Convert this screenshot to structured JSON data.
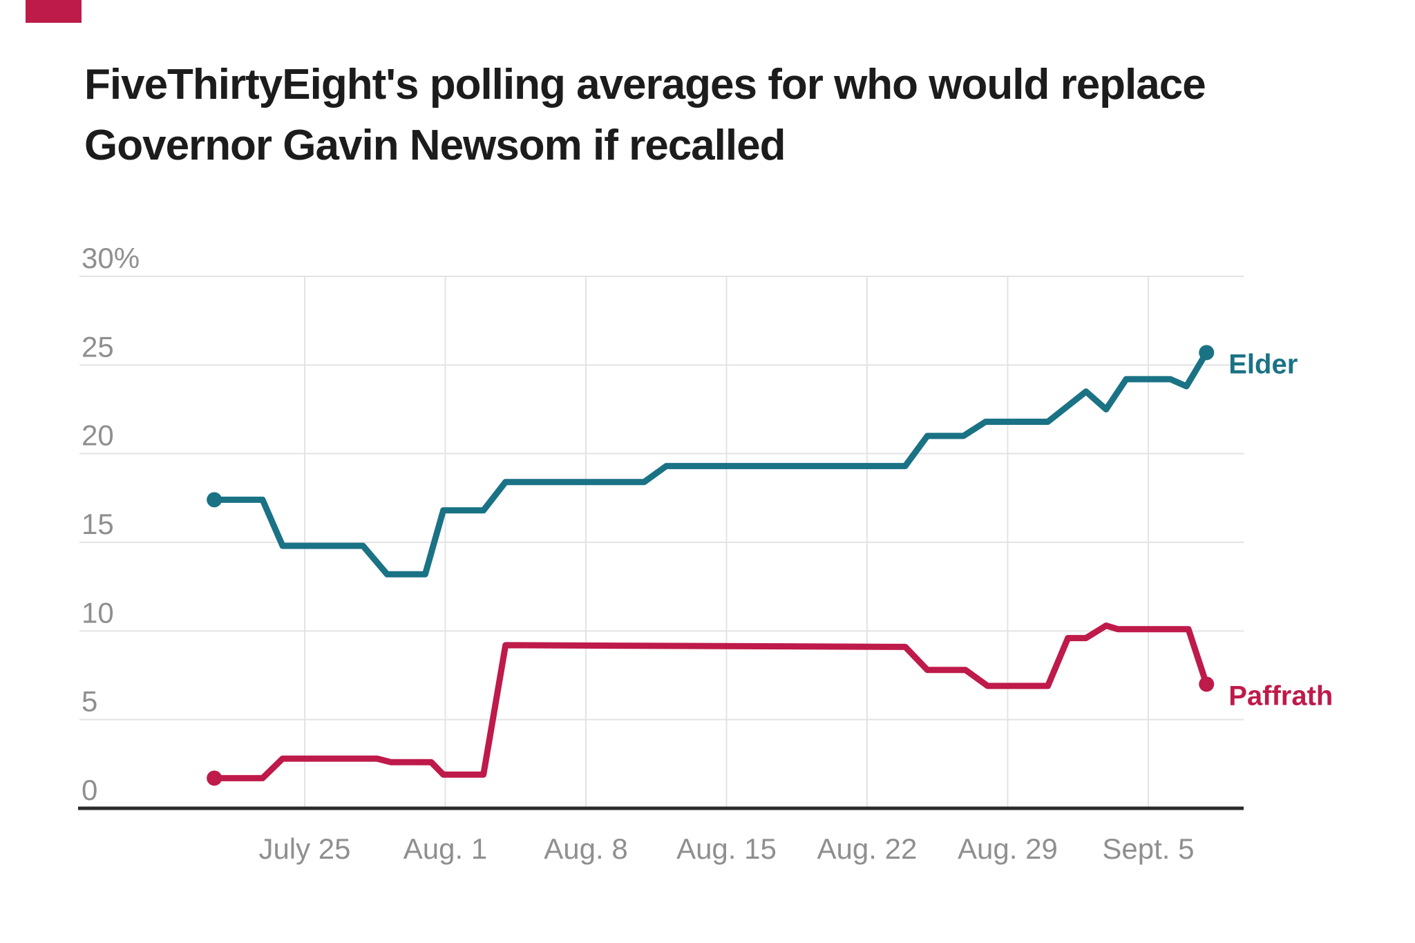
{
  "brand": {
    "mark_color": "#be1a4a"
  },
  "title": {
    "line1": "FiveThirtyEight's polling averages for who would replace",
    "line2": "Governor Gavin Newsom if recalled"
  },
  "colors": {
    "elder": "#1a7285",
    "paffrath": "#be1a4a",
    "gridline": "#e3e3e3",
    "axis": "#2b2b2b",
    "tick_text": "#8f8f8f",
    "title_text": "#1c1c1c"
  },
  "chart_data": {
    "type": "line",
    "title": "FiveThirtyEight's polling averages for who would replace Governor Gavin Newsom if recalled",
    "grid": true,
    "unit": "%",
    "ylim": [
      0,
      30
    ],
    "y_ticks": [
      {
        "label": "30%",
        "value": 30
      },
      {
        "label": "25",
        "value": 25
      },
      {
        "label": "20",
        "value": 20
      },
      {
        "label": "15",
        "value": 15
      },
      {
        "label": "10",
        "value": 10
      },
      {
        "label": "5",
        "value": 5
      },
      {
        "label": "0",
        "value": 0
      }
    ],
    "x_axis_note": "day offsets measured in days since July 25",
    "x_ticks": [
      {
        "label": "July 25",
        "day": 0
      },
      {
        "label": "Aug. 1",
        "day": 7
      },
      {
        "label": "Aug. 8",
        "day": 14
      },
      {
        "label": "Aug. 15",
        "day": 21
      },
      {
        "label": "Aug. 22",
        "day": 28
      },
      {
        "label": "Aug. 29",
        "day": 35
      },
      {
        "label": "Sept. 5",
        "day": 42
      }
    ],
    "legend_position": "right-of-line-ends",
    "series": [
      {
        "name": "Elder",
        "color": "#1a7285",
        "endpoint_dots": true,
        "points": [
          [
            -4.5,
            17.4
          ],
          [
            -2.1,
            17.4
          ],
          [
            -1.1,
            14.8
          ],
          [
            2.9,
            14.8
          ],
          [
            4.1,
            13.2
          ],
          [
            6.0,
            13.2
          ],
          [
            6.9,
            16.8
          ],
          [
            8.9,
            16.8
          ],
          [
            10.0,
            18.4
          ],
          [
            16.9,
            18.4
          ],
          [
            18.0,
            19.3
          ],
          [
            29.9,
            19.3
          ],
          [
            31.0,
            21.0
          ],
          [
            32.8,
            21.0
          ],
          [
            33.9,
            21.8
          ],
          [
            37.0,
            21.8
          ],
          [
            38.9,
            23.5
          ],
          [
            39.9,
            22.5
          ],
          [
            40.9,
            24.2
          ],
          [
            43.1,
            24.2
          ],
          [
            43.9,
            23.8
          ],
          [
            44.9,
            25.7
          ]
        ]
      },
      {
        "name": "Paffrath",
        "color": "#be1a4a",
        "endpoint_dots": true,
        "points": [
          [
            -4.5,
            1.7
          ],
          [
            -2.1,
            1.7
          ],
          [
            -1.1,
            2.8
          ],
          [
            3.6,
            2.8
          ],
          [
            4.3,
            2.6
          ],
          [
            6.3,
            2.6
          ],
          [
            6.9,
            1.9
          ],
          [
            8.9,
            1.9
          ],
          [
            10.0,
            9.2
          ],
          [
            29.9,
            9.1
          ],
          [
            31.0,
            7.8
          ],
          [
            32.9,
            7.8
          ],
          [
            34.0,
            6.9
          ],
          [
            37.0,
            6.9
          ],
          [
            38.0,
            9.6
          ],
          [
            38.9,
            9.6
          ],
          [
            39.9,
            10.3
          ],
          [
            40.5,
            10.1
          ],
          [
            44.0,
            10.1
          ],
          [
            44.9,
            7.0
          ]
        ]
      }
    ]
  }
}
